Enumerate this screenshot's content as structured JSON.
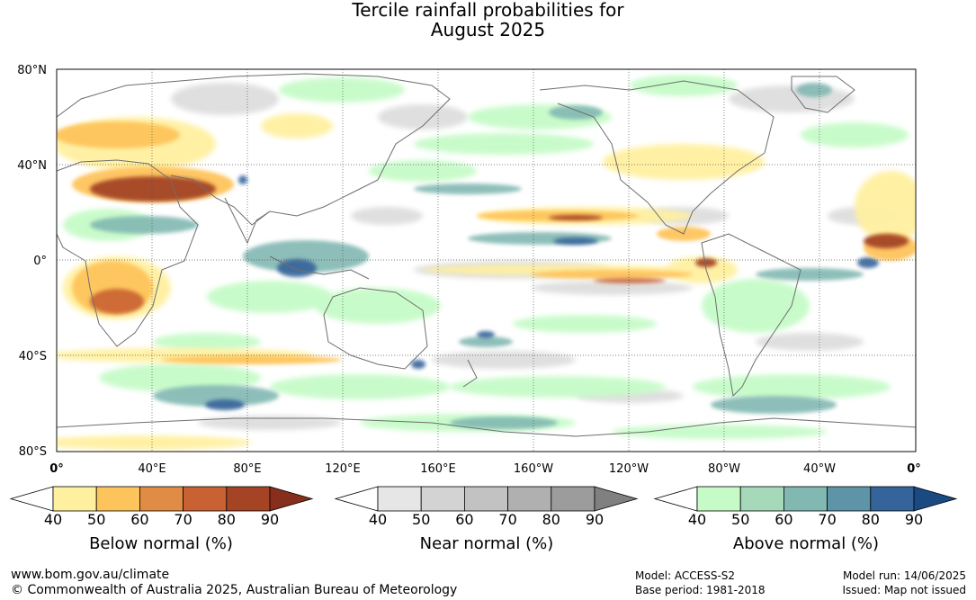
{
  "title": {
    "line1": "Tercile rainfall probabilities for",
    "line2": "August 2025"
  },
  "map": {
    "lat_labels": [
      "80°N",
      "40°N",
      "0°",
      "40°S",
      "80°S"
    ],
    "lon_labels": [
      "0°",
      "40°E",
      "80°E",
      "120°E",
      "160°E",
      "160°W",
      "120°W",
      "80°W",
      "40°W",
      "0°"
    ],
    "extent": {
      "lon": [
        0,
        360
      ],
      "lat": [
        -80,
        80
      ]
    },
    "grid": "dotted"
  },
  "colorbars": [
    {
      "name": "below",
      "label": "Below normal (%)",
      "ticks": [
        "40",
        "50",
        "60",
        "70",
        "80",
        "90"
      ],
      "colors": [
        "#ffffff",
        "#fff0a0",
        "#fec45c",
        "#e08c44",
        "#c96232",
        "#a44425",
        "#882e1c"
      ]
    },
    {
      "name": "near",
      "label": "Near normal (%)",
      "ticks": [
        "40",
        "50",
        "60",
        "70",
        "80",
        "90"
      ],
      "colors": [
        "#ffffff",
        "#e6e6e6",
        "#d3d3d3",
        "#c2c2c2",
        "#b0b0b0",
        "#9c9c9c",
        "#808080"
      ]
    },
    {
      "name": "above",
      "label": "Above normal (%)",
      "ticks": [
        "40",
        "50",
        "60",
        "70",
        "80",
        "90"
      ],
      "colors": [
        "#ffffff",
        "#c6fbc8",
        "#a6d8ba",
        "#82b8b2",
        "#5e94a8",
        "#34649a",
        "#1a4a82"
      ]
    }
  ],
  "footer": {
    "website": "www.bom.gov.au/climate",
    "copyright": "© Commonwealth of Australia 2025, Australian Bureau of Meteorology",
    "model": "Model: ACCESS-S2",
    "base_period": "Base period: 1981-2018",
    "model_run": "Model run: 14/06/2025",
    "issued": "Issued: Map not issued"
  }
}
